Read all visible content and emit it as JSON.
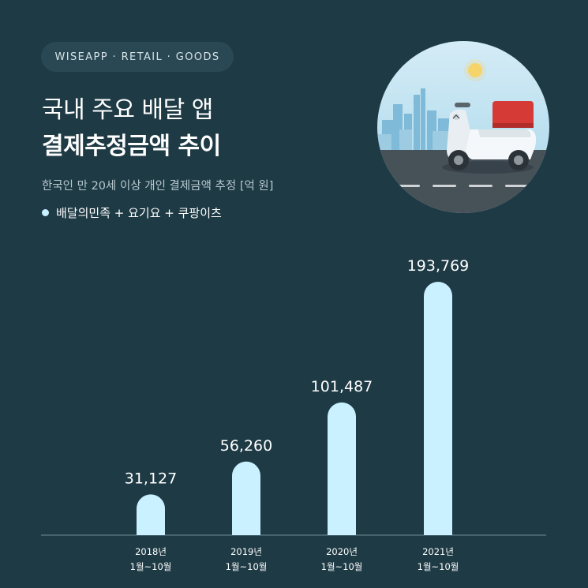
{
  "header": {
    "brand": "WISEAPP · RETAIL · GOODS",
    "title_line1": "국내 주요 배달 앱",
    "title_line2": "결제추정금액 추이",
    "subtitle": "한국인 만 20세 이상 개인 결제금액 추정 [억 원]"
  },
  "colors": {
    "background": "#1e3a45",
    "bar": "#c9f1ff",
    "text": "#ffffff"
  },
  "illustration": {
    "icon": "delivery-scooter-icon"
  },
  "chart_data": {
    "type": "bar",
    "categories": [
      [
        "2018년",
        "1월~10월"
      ],
      [
        "2019년",
        "1월~10월"
      ],
      [
        "2020년",
        "1월~10월"
      ],
      [
        "2021년",
        "1월~10월"
      ]
    ],
    "series": [
      {
        "name": "배달의민족 + 요기요 + 쿠팡이츠",
        "values": [
          31127,
          56260,
          101487,
          193769
        ]
      }
    ],
    "value_labels": [
      "31,127",
      "56,260",
      "101,487",
      "193,769"
    ],
    "ylim": [
      0,
      200000
    ],
    "grid": false,
    "legend": "top-left"
  }
}
